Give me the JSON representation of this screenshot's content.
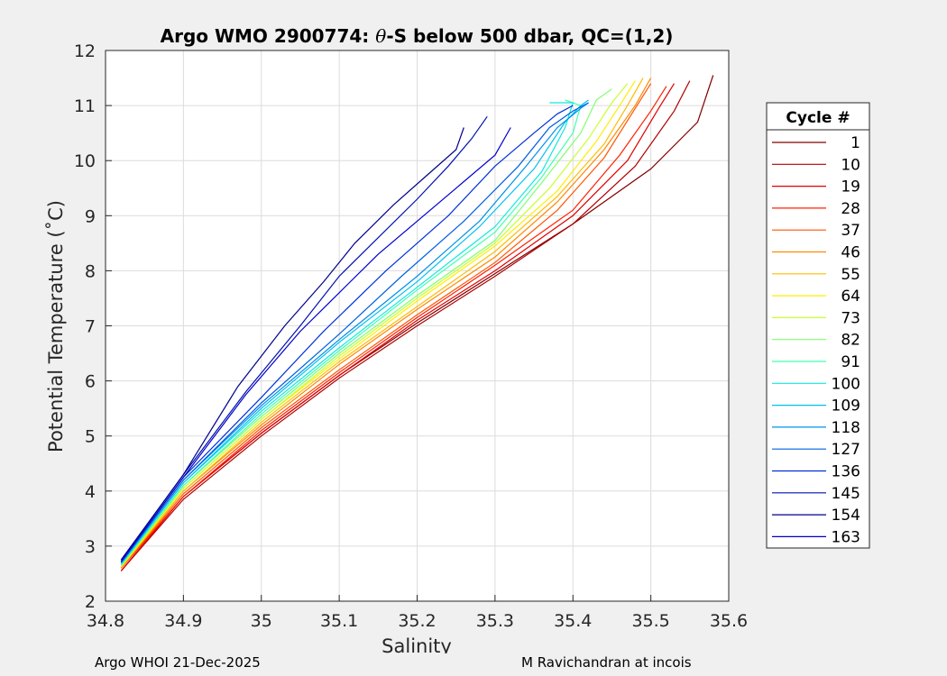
{
  "chart_data": {
    "type": "line",
    "title_prefix": "Argo WMO 2900774: ",
    "title_symbol": "θ",
    "title_suffix": "-S below 500 dbar,  QC=(1,2)",
    "xlabel": "Salinity",
    "ylabel": "Potential Temperature (˚C)",
    "xlim": [
      34.8,
      35.6
    ],
    "ylim": [
      2,
      12
    ],
    "xticks": [
      "34.8",
      "34.9",
      "35",
      "35.1",
      "35.2",
      "35.3",
      "35.4",
      "35.5",
      "35.6"
    ],
    "yticks": [
      "2",
      "3",
      "4",
      "5",
      "6",
      "7",
      "8",
      "9",
      "10",
      "11",
      "12"
    ],
    "grid": true,
    "legend_title": "Cycle #",
    "legend_position": "outside-right",
    "legend": [
      {
        "cycle": "1",
        "color": "#800000"
      },
      {
        "cycle": "10",
        "color": "#b00000"
      },
      {
        "cycle": "19",
        "color": "#e00000"
      },
      {
        "cycle": "28",
        "color": "#ff2000"
      },
      {
        "cycle": "37",
        "color": "#ff5500"
      },
      {
        "cycle": "46",
        "color": "#ff8800"
      },
      {
        "cycle": "55",
        "color": "#ffbb00"
      },
      {
        "cycle": "64",
        "color": "#ffee00"
      },
      {
        "cycle": "73",
        "color": "#c8ff30"
      },
      {
        "cycle": "82",
        "color": "#80ff70"
      },
      {
        "cycle": "91",
        "color": "#40ffb0"
      },
      {
        "cycle": "100",
        "color": "#10e8e0"
      },
      {
        "cycle": "109",
        "color": "#00c0f0"
      },
      {
        "cycle": "118",
        "color": "#0090e8"
      },
      {
        "cycle": "127",
        "color": "#0060e0"
      },
      {
        "cycle": "136",
        "color": "#0030d8"
      },
      {
        "cycle": "145",
        "color": "#0010b0"
      },
      {
        "cycle": "154",
        "color": "#00008a"
      },
      {
        "cycle": "163",
        "color": "#0000cc"
      }
    ],
    "profiles": [
      {
        "color": "#800000",
        "points": [
          [
            34.82,
            2.55
          ],
          [
            34.9,
            3.9
          ],
          [
            35.0,
            5.05
          ],
          [
            35.1,
            6.1
          ],
          [
            35.2,
            7.05
          ],
          [
            35.3,
            7.95
          ],
          [
            35.4,
            8.85
          ],
          [
            35.5,
            9.85
          ],
          [
            35.56,
            10.7
          ],
          [
            35.58,
            11.55
          ]
        ]
      },
      {
        "color": "#b00000",
        "points": [
          [
            34.82,
            2.55
          ],
          [
            34.9,
            3.85
          ],
          [
            35.0,
            5.0
          ],
          [
            35.1,
            6.05
          ],
          [
            35.2,
            7.0
          ],
          [
            35.3,
            7.9
          ],
          [
            35.4,
            8.85
          ],
          [
            35.48,
            9.9
          ],
          [
            35.53,
            10.9
          ],
          [
            35.55,
            11.45
          ]
        ]
      },
      {
        "color": "#e00000",
        "points": [
          [
            34.82,
            2.55
          ],
          [
            34.9,
            3.9
          ],
          [
            35.0,
            5.05
          ],
          [
            35.1,
            6.1
          ],
          [
            35.2,
            7.1
          ],
          [
            35.3,
            8.0
          ],
          [
            35.4,
            9.0
          ],
          [
            35.47,
            10.0
          ],
          [
            35.51,
            10.95
          ],
          [
            35.53,
            11.4
          ]
        ]
      },
      {
        "color": "#ff2000",
        "points": [
          [
            34.82,
            2.6
          ],
          [
            34.9,
            3.9
          ],
          [
            35.0,
            5.1
          ],
          [
            35.1,
            6.15
          ],
          [
            35.2,
            7.15
          ],
          [
            35.3,
            8.1
          ],
          [
            35.4,
            9.1
          ],
          [
            35.46,
            10.1
          ],
          [
            35.5,
            10.9
          ],
          [
            35.52,
            11.35
          ]
        ]
      },
      {
        "color": "#ff5500",
        "points": [
          [
            34.82,
            2.6
          ],
          [
            34.9,
            3.95
          ],
          [
            35.0,
            5.15
          ],
          [
            35.1,
            6.2
          ],
          [
            35.2,
            7.2
          ],
          [
            35.3,
            8.15
          ],
          [
            35.38,
            9.1
          ],
          [
            35.44,
            10.05
          ],
          [
            35.48,
            10.95
          ],
          [
            35.5,
            11.4
          ]
        ]
      },
      {
        "color": "#ff8800",
        "points": [
          [
            34.82,
            2.6
          ],
          [
            34.9,
            4.0
          ],
          [
            35.0,
            5.2
          ],
          [
            35.1,
            6.3
          ],
          [
            35.2,
            7.3
          ],
          [
            35.3,
            8.25
          ],
          [
            35.38,
            9.25
          ],
          [
            35.44,
            10.2
          ],
          [
            35.48,
            11.0
          ],
          [
            35.5,
            11.5
          ]
        ]
      },
      {
        "color": "#ffbb00",
        "points": [
          [
            34.82,
            2.62
          ],
          [
            34.9,
            4.0
          ],
          [
            35.0,
            5.25
          ],
          [
            35.1,
            6.35
          ],
          [
            35.2,
            7.35
          ],
          [
            35.3,
            8.35
          ],
          [
            35.38,
            9.35
          ],
          [
            35.44,
            10.3
          ],
          [
            35.47,
            11.0
          ],
          [
            35.49,
            11.5
          ]
        ]
      },
      {
        "color": "#ffee00",
        "points": [
          [
            34.82,
            2.62
          ],
          [
            34.9,
            4.05
          ],
          [
            35.0,
            5.3
          ],
          [
            35.1,
            6.4
          ],
          [
            35.2,
            7.45
          ],
          [
            35.3,
            8.45
          ],
          [
            35.38,
            9.45
          ],
          [
            35.43,
            10.35
          ],
          [
            35.46,
            11.0
          ],
          [
            35.48,
            11.45
          ]
        ]
      },
      {
        "color": "#c8ff30",
        "points": [
          [
            34.82,
            2.65
          ],
          [
            34.9,
            4.05
          ],
          [
            35.0,
            5.3
          ],
          [
            35.1,
            6.45
          ],
          [
            35.2,
            7.5
          ],
          [
            35.3,
            8.5
          ],
          [
            35.37,
            9.5
          ],
          [
            35.42,
            10.4
          ],
          [
            35.45,
            11.05
          ],
          [
            35.47,
            11.4
          ]
        ]
      },
      {
        "color": "#80ff70",
        "points": [
          [
            34.82,
            2.65
          ],
          [
            34.9,
            4.1
          ],
          [
            35.0,
            5.35
          ],
          [
            35.1,
            6.5
          ],
          [
            35.2,
            7.55
          ],
          [
            35.3,
            8.55
          ],
          [
            35.36,
            9.6
          ],
          [
            35.41,
            10.5
          ],
          [
            35.43,
            11.1
          ],
          [
            35.45,
            11.3
          ]
        ]
      },
      {
        "color": "#40ffb0",
        "points": [
          [
            34.82,
            2.65
          ],
          [
            34.9,
            4.1
          ],
          [
            35.0,
            5.4
          ],
          [
            35.1,
            6.55
          ],
          [
            35.2,
            7.65
          ],
          [
            35.3,
            8.7
          ],
          [
            35.36,
            9.7
          ],
          [
            35.4,
            10.5
          ],
          [
            35.41,
            11.0
          ],
          [
            35.39,
            11.1
          ]
        ]
      },
      {
        "color": "#10e8e0",
        "points": [
          [
            34.82,
            2.68
          ],
          [
            34.9,
            4.15
          ],
          [
            35.0,
            5.45
          ],
          [
            35.1,
            6.6
          ],
          [
            35.2,
            7.7
          ],
          [
            35.3,
            8.8
          ],
          [
            35.36,
            9.8
          ],
          [
            35.39,
            10.6
          ],
          [
            35.4,
            11.05
          ],
          [
            35.37,
            11.05
          ]
        ]
      },
      {
        "color": "#00c0f0",
        "points": [
          [
            34.82,
            2.68
          ],
          [
            34.9,
            4.15
          ],
          [
            35.0,
            5.5
          ],
          [
            35.1,
            6.7
          ],
          [
            35.2,
            7.8
          ],
          [
            35.28,
            8.8
          ],
          [
            35.35,
            9.85
          ],
          [
            35.39,
            10.7
          ],
          [
            35.41,
            11.0
          ],
          [
            35.42,
            11.1
          ]
        ]
      },
      {
        "color": "#0090e8",
        "points": [
          [
            34.82,
            2.7
          ],
          [
            34.9,
            4.2
          ],
          [
            35.0,
            5.55
          ],
          [
            35.1,
            6.75
          ],
          [
            35.2,
            7.9
          ],
          [
            35.28,
            8.9
          ],
          [
            35.34,
            9.9
          ],
          [
            35.38,
            10.6
          ],
          [
            35.41,
            10.95
          ],
          [
            35.42,
            11.05
          ]
        ]
      },
      {
        "color": "#0060e0",
        "points": [
          [
            34.82,
            2.7
          ],
          [
            34.9,
            4.2
          ],
          [
            35.0,
            5.6
          ],
          [
            35.1,
            6.85
          ],
          [
            35.18,
            7.9
          ],
          [
            35.26,
            8.9
          ],
          [
            35.33,
            9.9
          ],
          [
            35.37,
            10.6
          ],
          [
            35.4,
            10.9
          ],
          [
            35.42,
            11.05
          ]
        ]
      },
      {
        "color": "#0030d8",
        "points": [
          [
            34.82,
            2.72
          ],
          [
            34.9,
            4.25
          ],
          [
            35.0,
            5.7
          ],
          [
            35.08,
            6.9
          ],
          [
            35.16,
            8.0
          ],
          [
            35.24,
            9.0
          ],
          [
            35.3,
            9.9
          ],
          [
            35.35,
            10.5
          ],
          [
            35.38,
            10.85
          ],
          [
            35.4,
            11.0
          ]
        ]
      },
      {
        "color": "#0010b0",
        "points": [
          [
            34.82,
            2.75
          ],
          [
            34.9,
            4.3
          ],
          [
            34.98,
            5.8
          ],
          [
            35.05,
            7.0
          ],
          [
            35.1,
            7.9
          ],
          [
            35.15,
            8.6
          ],
          [
            35.2,
            9.3
          ],
          [
            35.24,
            9.9
          ],
          [
            35.27,
            10.4
          ],
          [
            35.29,
            10.8
          ]
        ]
      },
      {
        "color": "#00008a",
        "points": [
          [
            34.82,
            2.75
          ],
          [
            34.9,
            4.3
          ],
          [
            34.97,
            5.9
          ],
          [
            35.03,
            7.0
          ],
          [
            35.08,
            7.8
          ],
          [
            35.12,
            8.5
          ],
          [
            35.17,
            9.2
          ],
          [
            35.21,
            9.7
          ],
          [
            35.25,
            10.2
          ],
          [
            35.26,
            10.6
          ]
        ]
      },
      {
        "color": "#0000cc",
        "points": [
          [
            34.82,
            2.72
          ],
          [
            34.9,
            4.25
          ],
          [
            34.98,
            5.75
          ],
          [
            35.05,
            6.9
          ],
          [
            35.1,
            7.6
          ],
          [
            35.15,
            8.3
          ],
          [
            35.2,
            8.9
          ],
          [
            35.25,
            9.5
          ],
          [
            35.3,
            10.1
          ],
          [
            35.32,
            10.6
          ]
        ]
      }
    ]
  },
  "footer": {
    "left": "Argo WHOI 21-Dec-2025",
    "right": "M Ravichandran at incois"
  }
}
